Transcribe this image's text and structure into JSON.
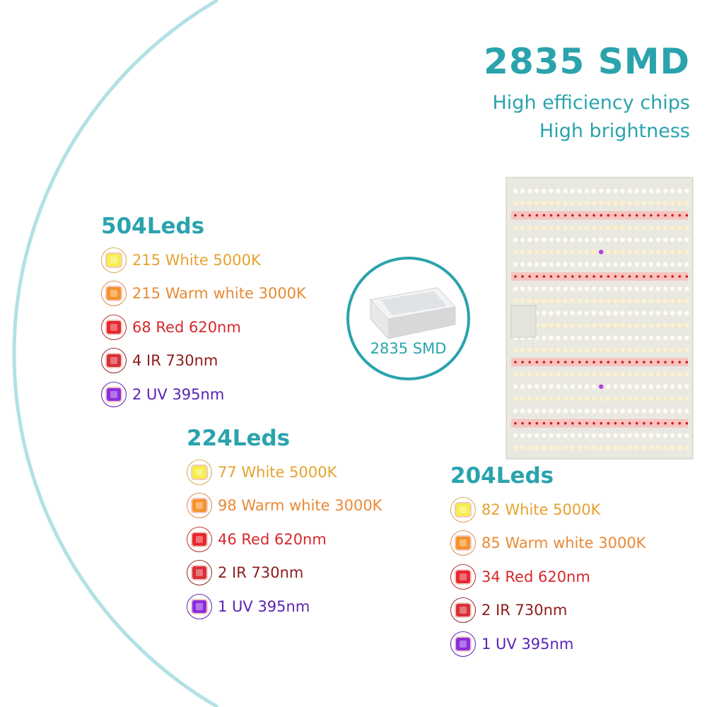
{
  "header": {
    "title": "2835 SMD",
    "subtitle_1": "High efficiency chips",
    "subtitle_2": "High brightness"
  },
  "chip_callout": {
    "label": "2835 SMD"
  },
  "colors": {
    "accent": "#2aa3ad",
    "white": "#e6a22e",
    "warm": "#e88a34",
    "red": "#d8282c",
    "ir": "#8e1b1b",
    "uv": "#5a23b4"
  },
  "groups": [
    {
      "title": "504Leds",
      "items": [
        {
          "type": "white",
          "text": "215 White 5000K"
        },
        {
          "type": "warm",
          "text": "215 Warm white 3000K"
        },
        {
          "type": "red",
          "text": "68 Red 620nm"
        },
        {
          "type": "ir",
          "text": "4 IR 730nm"
        },
        {
          "type": "uv",
          "text": "2 UV 395nm"
        }
      ]
    },
    {
      "title": "224Leds",
      "items": [
        {
          "type": "white",
          "text": "77 White 5000K"
        },
        {
          "type": "warm",
          "text": "98 Warm white 3000K"
        },
        {
          "type": "red",
          "text": "46 Red 620nm"
        },
        {
          "type": "ir",
          "text": "2 IR 730nm"
        },
        {
          "type": "uv",
          "text": "1 UV 395nm"
        }
      ]
    },
    {
      "title": "204Leds",
      "items": [
        {
          "type": "white",
          "text": "82 White 5000K"
        },
        {
          "type": "warm",
          "text": "85 Warm white 3000K"
        },
        {
          "type": "red",
          "text": "34 Red 620nm"
        },
        {
          "type": "ir",
          "text": "2 IR 730nm"
        },
        {
          "type": "uv",
          "text": "1 UV 395nm"
        }
      ]
    }
  ]
}
